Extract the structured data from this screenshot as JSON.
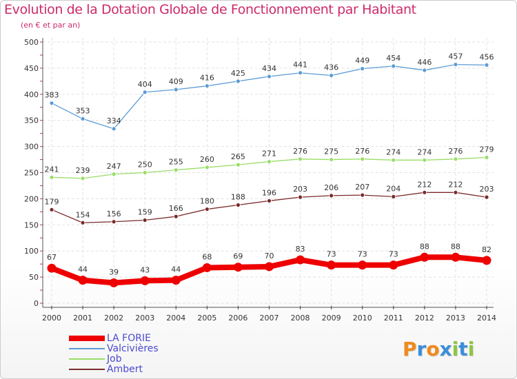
{
  "title": "Evolution de la Dotation Globale de Fonctionnement par Habitant",
  "subtitle": "(en € et par an)",
  "logo": {
    "letters": [
      "P",
      "r",
      "o",
      "x",
      "i",
      "t",
      "i"
    ],
    "colors": [
      "#f08a1c",
      "#3b8fd8",
      "#f08a1c",
      "#3b8fd8",
      "#8dc63f",
      "#3b8fd8",
      "#8dc63f"
    ]
  },
  "chart_data": {
    "type": "line",
    "title": "Evolution de la Dotation Globale de Fonctionnement par Habitant",
    "subtitle": "(en € et par an)",
    "x": [
      "2000",
      "2001",
      "2002",
      "2003",
      "2004",
      "2005",
      "2006",
      "2007",
      "2008",
      "2009",
      "2010",
      "2011",
      "2012",
      "2013",
      "2014"
    ],
    "ylim": [
      0,
      500
    ],
    "yticks": [
      0,
      50,
      100,
      150,
      200,
      250,
      300,
      350,
      400,
      450,
      500
    ],
    "ytick_labels": [
      "0",
      "50",
      "100",
      "150",
      "200",
      "250",
      "300",
      "350",
      "400",
      "450",
      "500"
    ],
    "grid": true,
    "legend_position": "bottom-left",
    "series": [
      {
        "name": "LA FORIE",
        "color": "#ee0000",
        "emphasis": true,
        "values": [
          67,
          44,
          39,
          43,
          44,
          68,
          69,
          70,
          83,
          73,
          73,
          73,
          88,
          88,
          82
        ],
        "labels": [
          "67",
          "44",
          "39",
          "43",
          "44",
          "68",
          "69",
          "70",
          "83",
          "73",
          "73",
          "73",
          "88",
          "88",
          "82"
        ]
      },
      {
        "name": "Valcivières",
        "color": "#5b9bd5",
        "emphasis": false,
        "values": [
          383,
          353,
          334,
          404,
          409,
          416,
          425,
          434,
          441,
          436,
          449,
          454,
          446,
          457,
          456
        ],
        "labels": [
          "383",
          "353",
          "334",
          "404",
          "409",
          "416",
          "425",
          "434",
          "441",
          "436",
          "449",
          "454",
          "446",
          "457",
          "456"
        ]
      },
      {
        "name": "Job",
        "color": "#99dd66",
        "emphasis": false,
        "values": [
          241,
          239,
          247,
          250,
          255,
          260,
          265,
          271,
          276,
          275,
          276,
          274,
          274,
          276,
          279
        ],
        "labels": [
          "241",
          "239",
          "247",
          "250",
          "255",
          "260",
          "265",
          "271",
          "276",
          "275",
          "276",
          "274",
          "274",
          "276",
          "279"
        ]
      },
      {
        "name": "Ambert",
        "color": "#7a2a2a",
        "emphasis": false,
        "values": [
          179,
          154,
          156,
          159,
          166,
          180,
          188,
          196,
          203,
          206,
          207,
          204,
          212,
          212,
          203
        ],
        "labels": [
          "179",
          "154",
          "156",
          "159",
          "166",
          "180",
          "188",
          "196",
          "203",
          "206",
          "207",
          "204",
          "212",
          "212",
          "203"
        ]
      }
    ]
  }
}
